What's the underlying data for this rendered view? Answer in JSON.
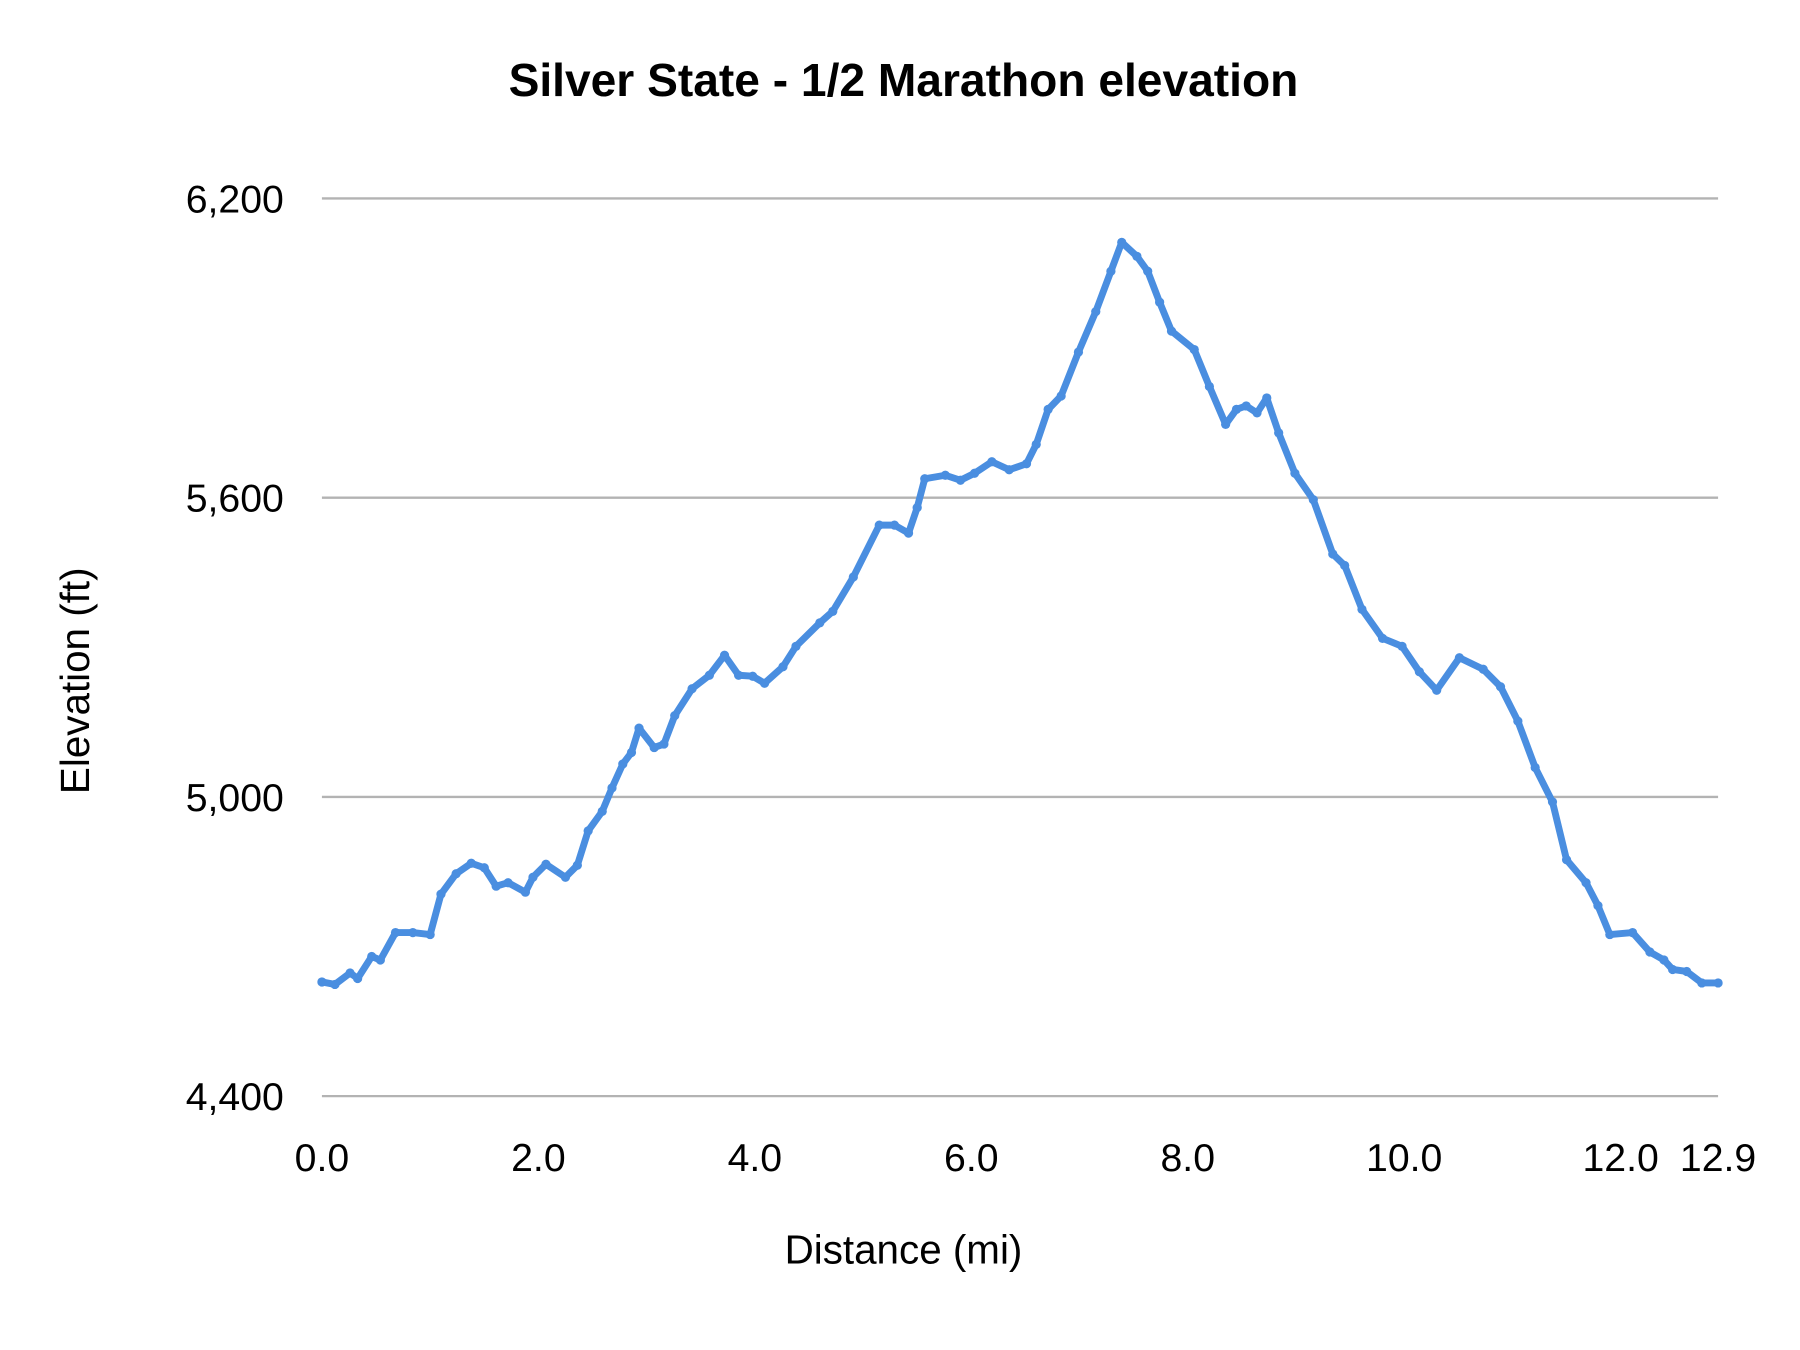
{
  "chart_data": {
    "type": "line",
    "title": "Silver State - 1/2 Marathon elevation",
    "xlabel": "Distance (mi)",
    "ylabel": "Elevation (ft)",
    "xlim": [
      0,
      12.9
    ],
    "ylim": [
      4400,
      6200
    ],
    "x_ticks": [
      "0.0",
      "2.0",
      "4.0",
      "6.0",
      "8.0",
      "10.0",
      "12.0",
      "12.9"
    ],
    "x_tick_values": [
      0,
      2,
      4,
      6,
      8,
      10,
      12,
      12.9
    ],
    "y_ticks": [
      "4,400",
      "5,000",
      "5,600",
      "6,200"
    ],
    "y_tick_values": [
      4400,
      5000,
      5600,
      6200
    ],
    "grid": "horizontal",
    "legend": "none",
    "series_color": "#4a8ee0",
    "series": [
      {
        "x": [
          0,
          0.12,
          0.26,
          0.33,
          0.46,
          0.54,
          0.68,
          0.84,
          1.0,
          1.1,
          1.24,
          1.38,
          1.5,
          1.61,
          1.72,
          1.88,
          1.95,
          2.07,
          2.25,
          2.36,
          2.46,
          2.59,
          2.68,
          2.78,
          2.86,
          2.93,
          3.07,
          3.16,
          3.26,
          3.42,
          3.58,
          3.72,
          3.85,
          3.98,
          4.09,
          4.26,
          4.38,
          4.6,
          4.72,
          4.91,
          5.15,
          5.29,
          5.42,
          5.5,
          5.57,
          5.76,
          5.9,
          6.03,
          6.19,
          6.35,
          6.51,
          6.6,
          6.71,
          6.83,
          6.99,
          7.15,
          7.29,
          7.39,
          7.53,
          7.63,
          7.74,
          7.85,
          8.06,
          8.2,
          8.35,
          8.45,
          8.54,
          8.64,
          8.73,
          8.84,
          8.99,
          9.16,
          9.34,
          9.45,
          9.61,
          9.8,
          9.98,
          10.14,
          10.3,
          10.51,
          10.73,
          10.89,
          11.05,
          11.21,
          11.37,
          11.5,
          11.68,
          11.79,
          11.9,
          12.11,
          12.27,
          12.4,
          12.48,
          12.61,
          12.75,
          12.9
        ],
        "y": [
          4629,
          4624,
          4647,
          4636,
          4680,
          4673,
          4728,
          4728,
          4724,
          4805,
          4846,
          4867,
          4858,
          4821,
          4828,
          4809,
          4839,
          4865,
          4839,
          4863,
          4932,
          4971,
          5018,
          5066,
          5089,
          5138,
          5099,
          5106,
          5163,
          5217,
          5244,
          5284,
          5244,
          5242,
          5228,
          5261,
          5302,
          5349,
          5372,
          5441,
          5545,
          5545,
          5529,
          5580,
          5638,
          5645,
          5635,
          5649,
          5672,
          5656,
          5668,
          5707,
          5777,
          5804,
          5892,
          5973,
          6054,
          6112,
          6084,
          6054,
          5992,
          5934,
          5897,
          5823,
          5747,
          5777,
          5784,
          5770,
          5800,
          5730,
          5649,
          5596,
          5487,
          5464,
          5376,
          5318,
          5302,
          5251,
          5214,
          5279,
          5256,
          5221,
          5152,
          5059,
          4990,
          4874,
          4828,
          4782,
          4724,
          4728,
          4689,
          4673,
          4654,
          4650,
          4627,
          4627
        ]
      }
    ]
  }
}
